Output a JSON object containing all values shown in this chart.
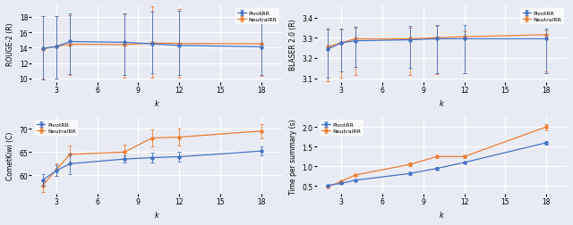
{
  "k": [
    2,
    3,
    4,
    8,
    10,
    12,
    18
  ],
  "rouge2_pivot": [
    13.9,
    14.15,
    14.8,
    14.7,
    14.5,
    14.3,
    14.1
  ],
  "rouge2_pivot_err_low": [
    4.0,
    4.2,
    4.2,
    4.2,
    3.8,
    3.8,
    3.7
  ],
  "rouge2_pivot_err_high": [
    4.2,
    3.9,
    3.6,
    3.8,
    4.2,
    4.5,
    4.2
  ],
  "rouge2_neutral": [
    13.85,
    14.15,
    14.45,
    14.4,
    14.6,
    14.55,
    14.5
  ],
  "rouge2_neutral_err_low": [
    3.9,
    4.2,
    4.0,
    4.3,
    4.5,
    4.5,
    4.2
  ],
  "rouge2_neutral_err_high": [
    4.2,
    3.9,
    3.8,
    3.9,
    4.8,
    4.5,
    4.2
  ],
  "blaser_pivot": [
    3.245,
    3.275,
    3.285,
    3.29,
    3.295,
    3.295,
    3.295
  ],
  "blaser_pivot_err_low": [
    0.14,
    0.14,
    0.13,
    0.14,
    0.17,
    0.17,
    0.17
  ],
  "blaser_pivot_err_high": [
    0.1,
    0.07,
    0.07,
    0.07,
    0.07,
    0.07,
    0.05
  ],
  "blaser_neutral": [
    3.255,
    3.275,
    3.295,
    3.295,
    3.3,
    3.305,
    3.315
  ],
  "blaser_neutral_err_low": [
    0.17,
    0.17,
    0.18,
    0.18,
    0.18,
    0.18,
    0.18
  ],
  "blaser_neutral_err_high": [
    0.085,
    0.065,
    0.055,
    0.055,
    0.06,
    0.025,
    0.02
  ],
  "comet_pivot": [
    59.0,
    61.0,
    62.5,
    63.5,
    63.8,
    64.0,
    65.2
  ],
  "comet_pivot_err_low": [
    1.2,
    1.2,
    2.2,
    0.8,
    1.0,
    1.0,
    1.0
  ],
  "comet_pivot_err_high": [
    1.2,
    1.2,
    2.2,
    0.8,
    1.0,
    1.0,
    1.0
  ],
  "comet_neutral": [
    57.8,
    61.2,
    64.5,
    65.0,
    68.0,
    68.2,
    69.5
  ],
  "comet_neutral_err_low": [
    1.4,
    1.4,
    1.8,
    1.5,
    1.8,
    1.8,
    1.5
  ],
  "comet_neutral_err_high": [
    1.4,
    1.4,
    1.8,
    1.5,
    1.8,
    1.8,
    1.5
  ],
  "time_pivot": [
    0.52,
    0.57,
    0.65,
    0.82,
    0.95,
    1.1,
    1.6
  ],
  "time_pivot_err_low": [
    0.02,
    0.02,
    0.02,
    0.03,
    0.03,
    0.03,
    0.05
  ],
  "time_pivot_err_high": [
    0.02,
    0.02,
    0.02,
    0.03,
    0.03,
    0.03,
    0.05
  ],
  "time_neutral": [
    0.48,
    0.62,
    0.78,
    1.05,
    1.25,
    1.25,
    2.0
  ],
  "time_neutral_err_low": [
    0.02,
    0.03,
    0.03,
    0.04,
    0.04,
    0.04,
    0.08
  ],
  "time_neutral_err_high": [
    0.02,
    0.03,
    0.03,
    0.04,
    0.04,
    0.04,
    0.08
  ],
  "color_pivot": "#4472C4",
  "color_neutral": "#ED7D31",
  "bg_color": "#E9EBF4",
  "xticks": [
    3,
    6,
    9,
    12,
    15,
    18
  ],
  "xlim": [
    1.2,
    19.5
  ]
}
